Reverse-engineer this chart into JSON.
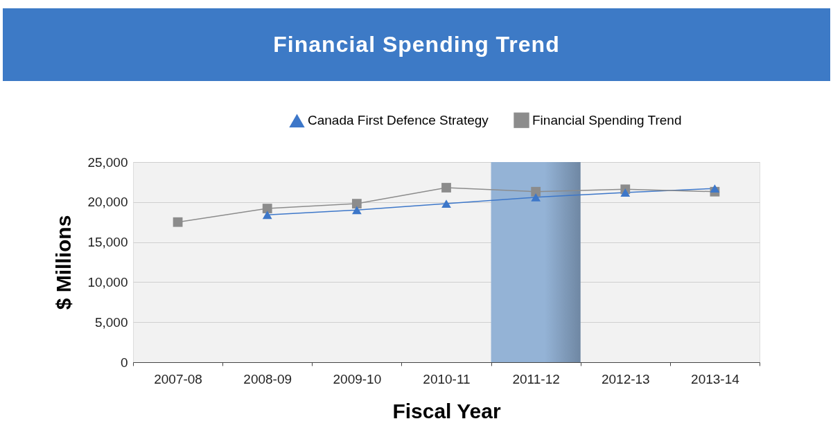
{
  "chart_data": {
    "type": "line",
    "title": "Financial Spending Trend",
    "xlabel": "Fiscal Year",
    "ylabel": "$ Millions",
    "categories": [
      "2007-08",
      "2008-09",
      "2009-10",
      "2010-11",
      "2011-12",
      "2012-13",
      "2013-14"
    ],
    "series": [
      {
        "name": "Canada First Defence Strategy",
        "color": "#3d77c9",
        "marker": "triangle",
        "values": [
          null,
          18400,
          19000,
          19800,
          20600,
          21200,
          21700
        ]
      },
      {
        "name": "Financial Spending Trend",
        "color": "#8c8c8c",
        "marker": "square",
        "values": [
          17500,
          19200,
          19800,
          21800,
          21300,
          21600,
          21300
        ]
      }
    ],
    "ylim": [
      0,
      25000
    ],
    "yticks": [
      0,
      {
        "value": 5000,
        "label": "5,000"
      },
      {
        "value": 10000,
        "label": "10,000"
      },
      {
        "value": 15000,
        "label": "15,000"
      },
      {
        "value": 20000,
        "label": "20,000"
      },
      {
        "value": 25000,
        "label": "25,000"
      }
    ],
    "grid": "y",
    "legend": "top right",
    "bands": [
      {
        "axis": "x",
        "from": "2011-12",
        "to": "2011-12",
        "color": "#94b3d6"
      }
    ]
  }
}
